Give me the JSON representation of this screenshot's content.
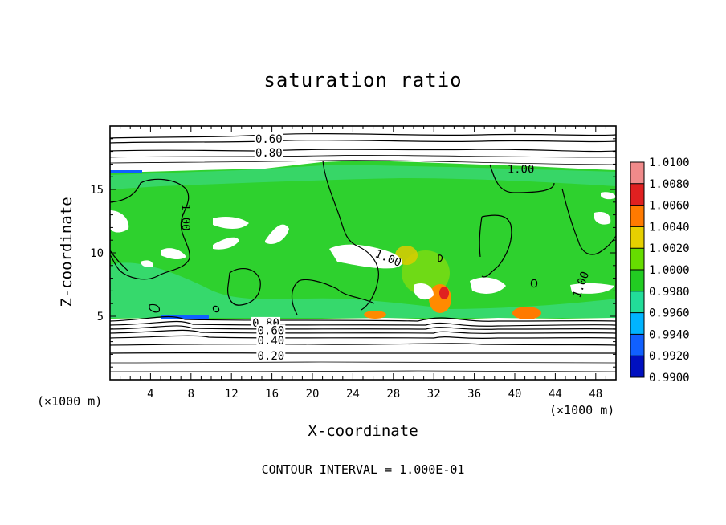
{
  "chart_data": {
    "type": "heatmap",
    "title": "saturation ratio",
    "xlabel": "X-coordinate",
    "ylabel": "Z-coordinate",
    "x_unit_label": "(×1000 m)",
    "footer": "CONTOUR INTERVAL = 1.000E-01",
    "xlim": [
      0,
      50
    ],
    "ylim": [
      0,
      20
    ],
    "x_ticks": [
      4,
      8,
      12,
      16,
      20,
      24,
      28,
      32,
      36,
      40,
      44,
      48
    ],
    "y_ticks": [
      5,
      10,
      15
    ],
    "colorbar": {
      "levels": [
        "1.0100",
        "1.0080",
        "1.0060",
        "1.0040",
        "1.0020",
        "1.0000",
        "0.9980",
        "0.9960",
        "0.9940",
        "0.9920",
        "0.9900"
      ],
      "colors": [
        "#f08a8a",
        "#e02020",
        "#ff7a00",
        "#e6d000",
        "#66dd00",
        "#22cc22",
        "#22dd99",
        "#00b4ff",
        "#1060ff",
        "#0010c0",
        "#7a22a0"
      ]
    },
    "contour_labels": [
      {
        "text": "0.60",
        "x": 15.7,
        "z": 19.0
      },
      {
        "text": "0.80",
        "x": 15.7,
        "z": 17.9
      },
      {
        "text": "1.00",
        "x": 40.6,
        "z": 16.6
      },
      {
        "text": "1.00",
        "x": 7.5,
        "z": 12.8
      },
      {
        "text": "1.00",
        "x": 27.5,
        "z": 9.6
      },
      {
        "text": "1.00",
        "x": 46.5,
        "z": 7.5
      },
      {
        "text": "0.80",
        "x": 15.4,
        "z": 4.5
      },
      {
        "text": "0.60",
        "x": 15.9,
        "z": 3.9
      },
      {
        "text": "0.40",
        "x": 15.9,
        "z": 3.1
      },
      {
        "text": "0.20",
        "x": 15.9,
        "z": 1.9
      }
    ]
  }
}
